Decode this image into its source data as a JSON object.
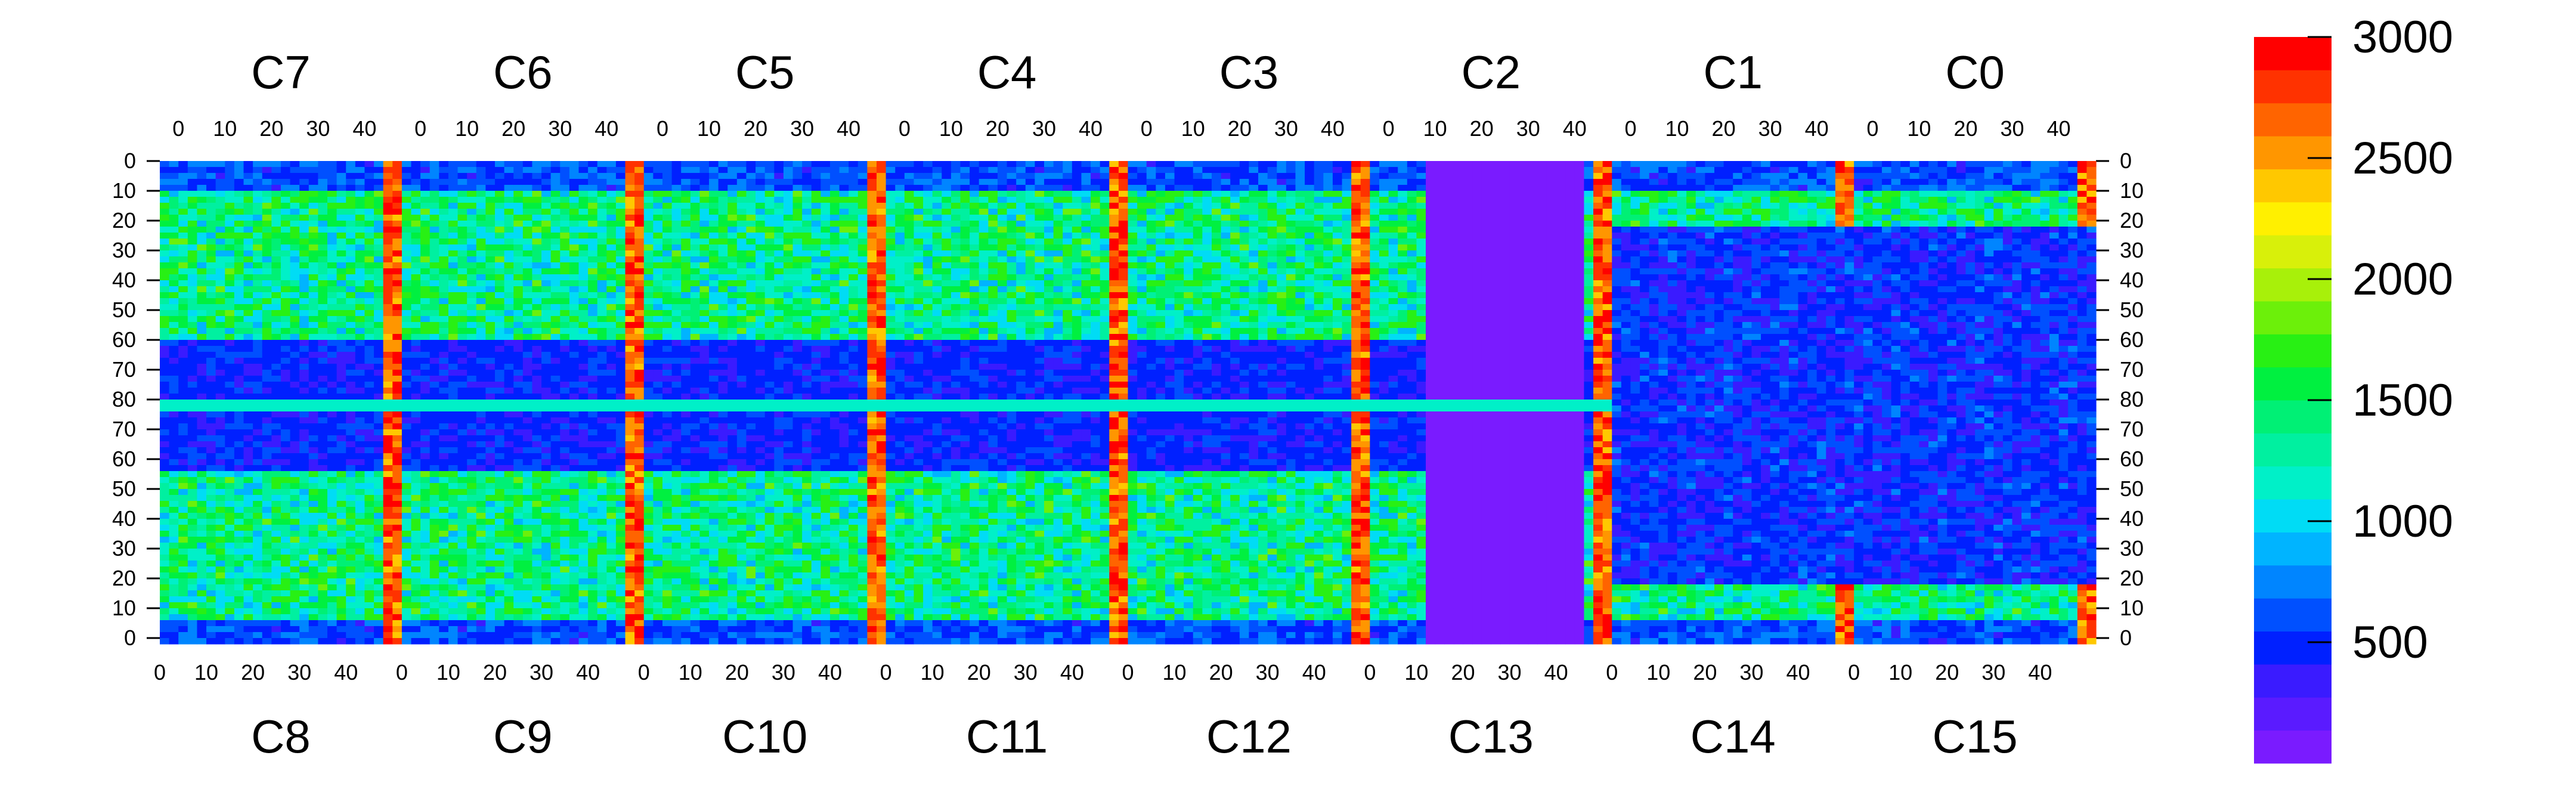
{
  "chart_data": {
    "type": "heatmap",
    "title": "",
    "xlabel": "",
    "ylabel": "",
    "z_range": [
      0,
      3000
    ],
    "z_scale": "linear",
    "palette": [
      "#7a1bff",
      "#5a1bff",
      "#3a1bff",
      "#0020ff",
      "#0050ff",
      "#0085ff",
      "#00b4ff",
      "#00dcf5",
      "#00f0c8",
      "#00f0a0",
      "#00f075",
      "#00f040",
      "#28f014",
      "#6cf00a",
      "#a8f00a",
      "#d8f00a",
      "#fff000",
      "#ffc800",
      "#ff9600",
      "#ff6400",
      "#ff3200",
      "#ff0000"
    ],
    "colorbar_ticks": [
      "3000",
      "2500",
      "2000",
      "1500",
      "1000",
      "500"
    ],
    "colorbar_tick_values": [
      3000,
      2500,
      2000,
      1500,
      1000,
      500
    ],
    "top_chips": [
      "C7",
      "C6",
      "C5",
      "C4",
      "C3",
      "C2",
      "C1",
      "C0"
    ],
    "bottom_chips": [
      "C8",
      "C9",
      "C10",
      "C11",
      "C12",
      "C13",
      "C14",
      "C15"
    ],
    "top_tick_labels": [
      "40",
      "30",
      "20",
      "10",
      "0"
    ],
    "top_tick_columns": [
      44,
      34,
      24,
      14,
      4
    ],
    "bottom_tick_labels": [
      "0",
      "10",
      "20",
      "30",
      "40"
    ],
    "bottom_tick_columns": [
      0,
      10,
      20,
      30,
      40
    ],
    "left_tick_labels": [
      "0",
      "10",
      "20",
      "30",
      "40",
      "50",
      "60",
      "70",
      "80",
      "70",
      "60",
      "50",
      "40",
      "30",
      "20",
      "10",
      "0"
    ],
    "right_tick_labels": [
      "0",
      "10",
      "20",
      "30",
      "40",
      "50",
      "60",
      "70",
      "80",
      "70",
      "60",
      "50",
      "40",
      "30",
      "20",
      "10",
      "0"
    ],
    "row_tick_positions": [
      0,
      10,
      20,
      30,
      40,
      50,
      60,
      70,
      80,
      90,
      100,
      110,
      120,
      130,
      140,
      150,
      160
    ],
    "grid": {
      "columns_per_chip": 52,
      "chips_across": 8,
      "rows_per_half": 80,
      "total_rows": 162
    }
  }
}
